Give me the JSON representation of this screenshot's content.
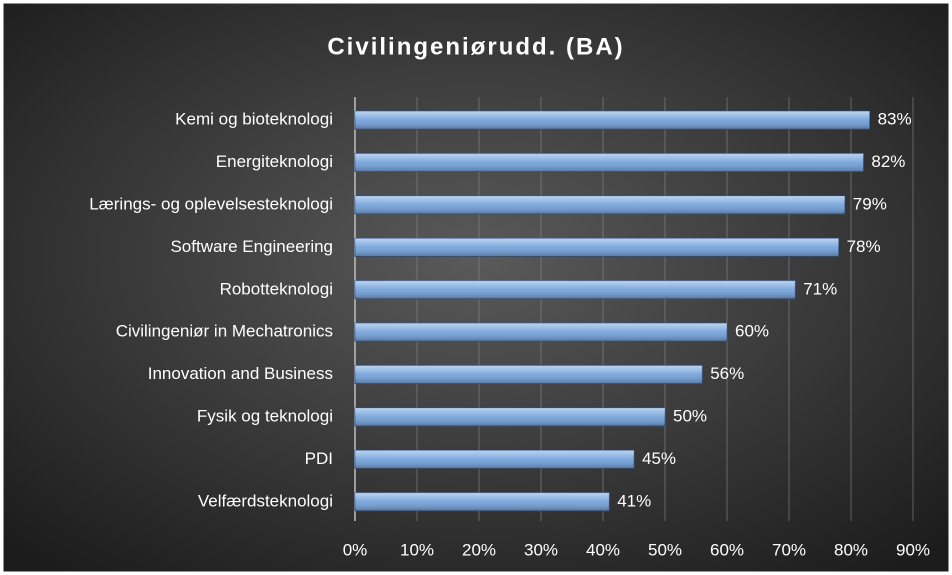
{
  "chart_data": {
    "type": "bar",
    "orientation": "horizontal",
    "title": "Civilingeniørudd. (BA)",
    "categories": [
      "Kemi og bioteknologi",
      "Energiteknologi",
      "Lærings- og oplevelsesteknologi",
      "Software Engineering",
      "Robotteknologi",
      "Civilingeniør in Mechatronics",
      "Innovation and Business",
      "Fysik og teknologi",
      "PDI",
      "Velfærdsteknologi"
    ],
    "values": [
      83,
      82,
      79,
      78,
      71,
      60,
      56,
      50,
      45,
      41
    ],
    "value_labels": [
      "83%",
      "82%",
      "79%",
      "78%",
      "71%",
      "60%",
      "56%",
      "50%",
      "45%",
      "41%"
    ],
    "color": "#6f9fd8",
    "xlim": [
      0,
      90
    ],
    "xticks": [
      {
        "value": 0,
        "label": "0%"
      },
      {
        "value": 10,
        "label": "10%"
      },
      {
        "value": 20,
        "label": "20%"
      },
      {
        "value": 30,
        "label": "30%"
      },
      {
        "value": 40,
        "label": "40%"
      },
      {
        "value": 50,
        "label": "50%"
      },
      {
        "value": 60,
        "label": "60%"
      },
      {
        "value": 70,
        "label": "70%"
      },
      {
        "value": 80,
        "label": "80%"
      },
      {
        "value": 90,
        "label": "90%"
      }
    ],
    "grid": true
  }
}
